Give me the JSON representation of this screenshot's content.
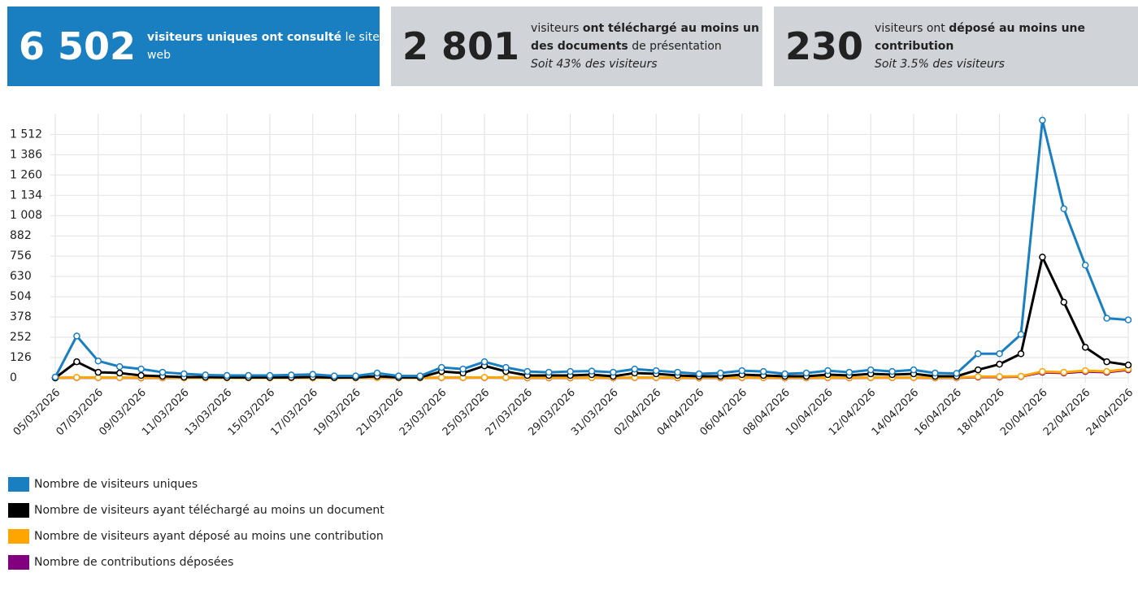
{
  "cards": [
    {
      "value": "6 502",
      "color": "#1a7fc1",
      "parts": [
        {
          "text": "visiteurs uniques ont consulté",
          "bold": true
        },
        {
          "text": " le site web",
          "bold": false
        }
      ]
    },
    {
      "value": "2 801",
      "color": "#d0d3d8",
      "parts": [
        {
          "text": "visiteurs ",
          "bold": false
        },
        {
          "text": "ont téléchargé au moins un des documents",
          "bold": true
        },
        {
          "text": " de présentation",
          "bold": false
        }
      ],
      "sub": "Soit 43% des visiteurs"
    },
    {
      "value": "230",
      "color": "#d0d3d8",
      "parts": [
        {
          "text": "visiteurs ont ",
          "bold": false
        },
        {
          "text": "déposé au moins une contribution",
          "bold": true
        }
      ],
      "sub": "Soit 3.5% des visiteurs"
    }
  ],
  "chart_data": {
    "type": "line",
    "categories": [
      "05/03/2026",
      null,
      "07/03/2026",
      null,
      "09/03/2026",
      null,
      "11/03/2026",
      null,
      "13/03/2026",
      null,
      "15/03/2026",
      null,
      "17/03/2026",
      null,
      "19/03/2026",
      null,
      "21/03/2026",
      null,
      "23/03/2026",
      null,
      "25/03/2026",
      null,
      "27/03/2026",
      null,
      "29/03/2026",
      null,
      "31/03/2026",
      null,
      "02/04/2026",
      null,
      "04/04/2026",
      null,
      "06/04/2026",
      null,
      "08/04/2026",
      null,
      "10/04/2026",
      null,
      "12/04/2026",
      null,
      "14/04/2026",
      null,
      "16/04/2026",
      null,
      "18/04/2026",
      null,
      "20/04/2026",
      null,
      "22/04/2026",
      null,
      "24/04/2026"
    ],
    "series": [
      {
        "name": "Nombre de contributions déposées",
        "color": "#800080",
        "values": [
          0,
          2,
          1,
          1,
          0,
          0,
          0,
          0,
          0,
          0,
          0,
          0,
          0,
          0,
          0,
          1,
          0,
          0,
          1,
          1,
          2,
          1,
          0,
          0,
          0,
          1,
          0,
          1,
          1,
          0,
          0,
          0,
          1,
          1,
          0,
          0,
          1,
          0,
          1,
          1,
          1,
          0,
          0,
          5,
          5,
          8,
          35,
          30,
          40,
          35,
          50
        ]
      },
      {
        "name": "Nombre de visiteurs ayant déposé au moins une contribution",
        "color": "#ffa500",
        "values": [
          0,
          3,
          2,
          2,
          1,
          1,
          0,
          0,
          0,
          0,
          0,
          0,
          0,
          0,
          0,
          1,
          0,
          0,
          2,
          2,
          3,
          2,
          1,
          1,
          1,
          1,
          1,
          2,
          2,
          1,
          1,
          1,
          2,
          2,
          1,
          1,
          2,
          1,
          2,
          2,
          2,
          1,
          1,
          8,
          8,
          10,
          40,
          35,
          45,
          40,
          55
        ]
      },
      {
        "name": "Nombre de visiteurs ayant téléchargé au moins un document",
        "color": "#000000",
        "values": [
          0,
          100,
          35,
          30,
          15,
          10,
          5,
          5,
          3,
          3,
          3,
          3,
          5,
          2,
          3,
          10,
          3,
          3,
          40,
          30,
          75,
          40,
          15,
          15,
          15,
          20,
          10,
          30,
          25,
          15,
          10,
          10,
          20,
          15,
          10,
          10,
          20,
          15,
          25,
          20,
          25,
          10,
          10,
          50,
          85,
          150,
          750,
          470,
          190,
          100,
          80
        ]
      },
      {
        "name": "Nombre de visiteurs uniques",
        "color": "#1a7fc1",
        "values": [
          5,
          260,
          105,
          70,
          55,
          35,
          25,
          18,
          15,
          15,
          15,
          18,
          22,
          12,
          12,
          30,
          12,
          12,
          65,
          55,
          100,
          65,
          40,
          35,
          40,
          42,
          35,
          55,
          45,
          35,
          25,
          30,
          45,
          40,
          25,
          30,
          45,
          35,
          50,
          40,
          50,
          30,
          28,
          150,
          150,
          270,
          1600,
          1050,
          700,
          370,
          360
        ]
      }
    ],
    "ylim": [
      0,
      1640
    ],
    "yticks": [
      0,
      126,
      252,
      378,
      504,
      630,
      756,
      882,
      {
        "value": 1008,
        "label": "1 008"
      },
      {
        "value": 1134,
        "label": "1 134"
      },
      {
        "value": 1260,
        "label": "1 260"
      },
      {
        "value": 1386,
        "label": "1 386"
      },
      {
        "value": 1512,
        "label": "1 512"
      }
    ],
    "grid": true,
    "legend_order": [
      3,
      2,
      1,
      0
    ]
  }
}
